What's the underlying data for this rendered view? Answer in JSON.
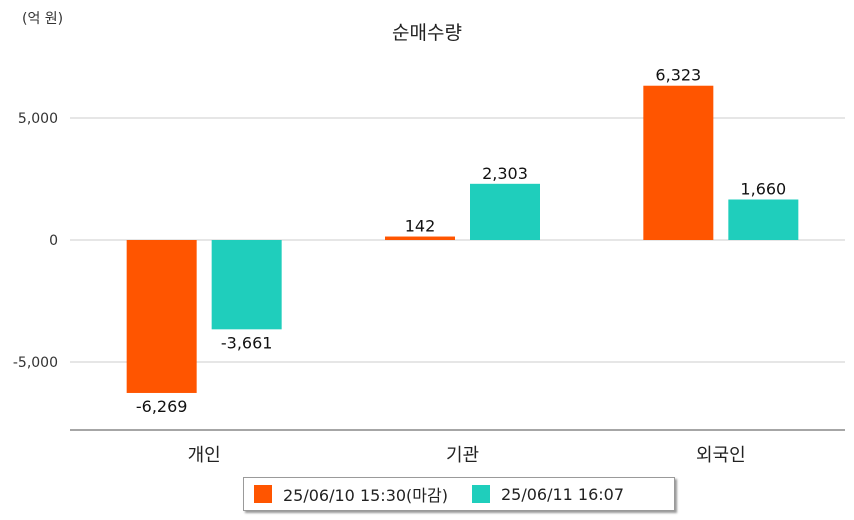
{
  "unit_label": "(억 원)",
  "colors": {
    "series_a": "#ff5500",
    "series_b": "#1fcebc",
    "grid": "#cccccc",
    "axis": "#888888"
  },
  "chart_data": {
    "type": "bar",
    "title": "순매수량",
    "ylabel": "(억 원)",
    "xlabel": "",
    "categories": [
      "개인",
      "기관",
      "외국인"
    ],
    "series": [
      {
        "name": "25/06/10 15:30(마감)",
        "values": [
          -6269,
          142,
          6323
        ],
        "labels": [
          "-6,269",
          "142",
          "6,323"
        ]
      },
      {
        "name": "25/06/11 16:07",
        "values": [
          -3661,
          2303,
          1660
        ],
        "labels": [
          "-3,661",
          "2,303",
          "1,660"
        ]
      }
    ],
    "yticks": [
      5000,
      0,
      -5000
    ],
    "ytick_labels": [
      "5,000",
      "0",
      "-5,000"
    ],
    "ylim": [
      -7900,
      8400
    ],
    "grid": true,
    "legend_position": "bottom"
  }
}
